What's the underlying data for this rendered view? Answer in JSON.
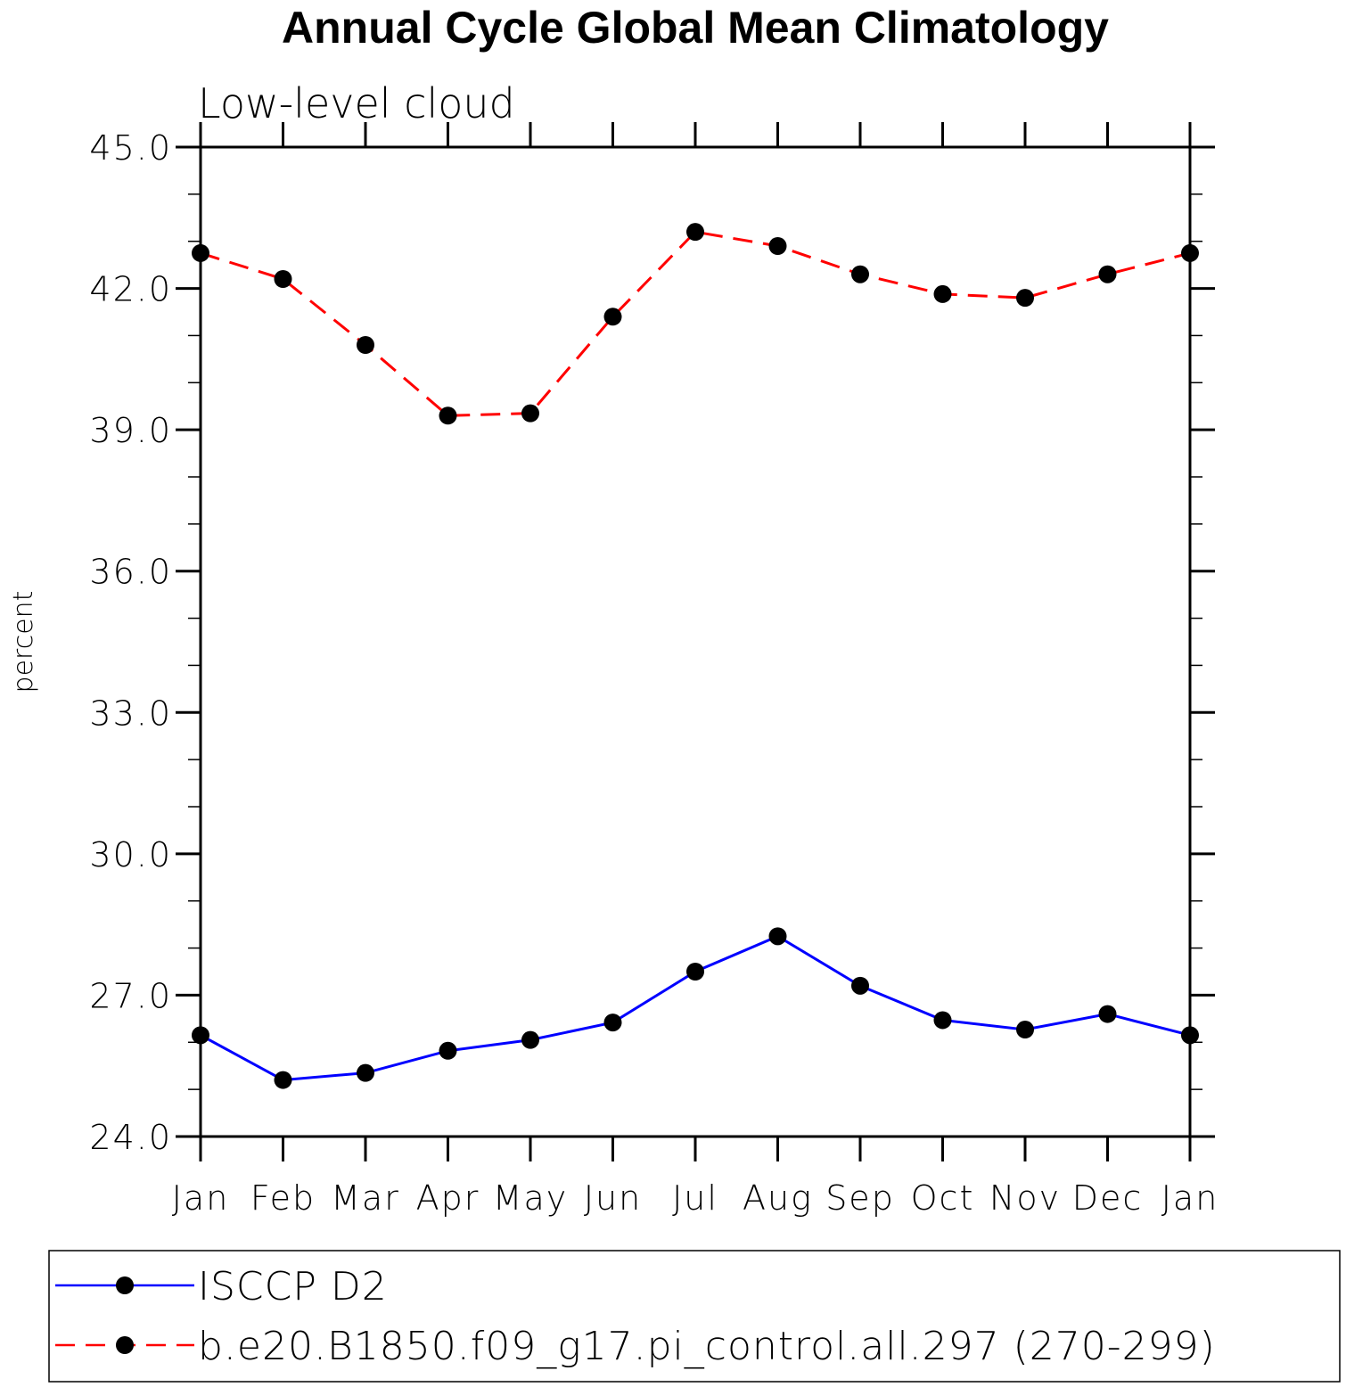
{
  "chart_data": {
    "type": "line",
    "title": "Annual Cycle Global Mean Climatology",
    "subtitle": "Low-level cloud",
    "xlabel": "",
    "ylabel": "percent",
    "ylim": [
      24.0,
      45.0
    ],
    "y_ticks": [
      "24.0",
      "27.0",
      "30.0",
      "33.0",
      "36.0",
      "39.0",
      "42.0",
      "45.0"
    ],
    "categories": [
      "Jan",
      "Feb",
      "Mar",
      "Apr",
      "May",
      "Jun",
      "Jul",
      "Aug",
      "Sep",
      "Oct",
      "Nov",
      "Dec",
      "Jan"
    ],
    "series": [
      {
        "name": "ISCCP D2",
        "color": "#0000ff",
        "line_style": "solid",
        "marker": "filled-circle",
        "values": [
          26.15,
          25.2,
          25.35,
          25.82,
          26.05,
          26.42,
          27.5,
          28.25,
          27.2,
          26.47,
          26.27,
          26.6,
          26.15
        ]
      },
      {
        "name": "b.e20.B1850.f09_g17.pi_control.all.297 (270-299)",
        "color": "#ff0000",
        "line_style": "dashed",
        "marker": "filled-circle",
        "values": [
          42.75,
          42.2,
          40.8,
          39.3,
          39.35,
          41.4,
          43.2,
          42.9,
          42.3,
          41.88,
          41.8,
          42.3,
          42.75
        ]
      }
    ],
    "grid": false,
    "legend_position": "bottom"
  }
}
